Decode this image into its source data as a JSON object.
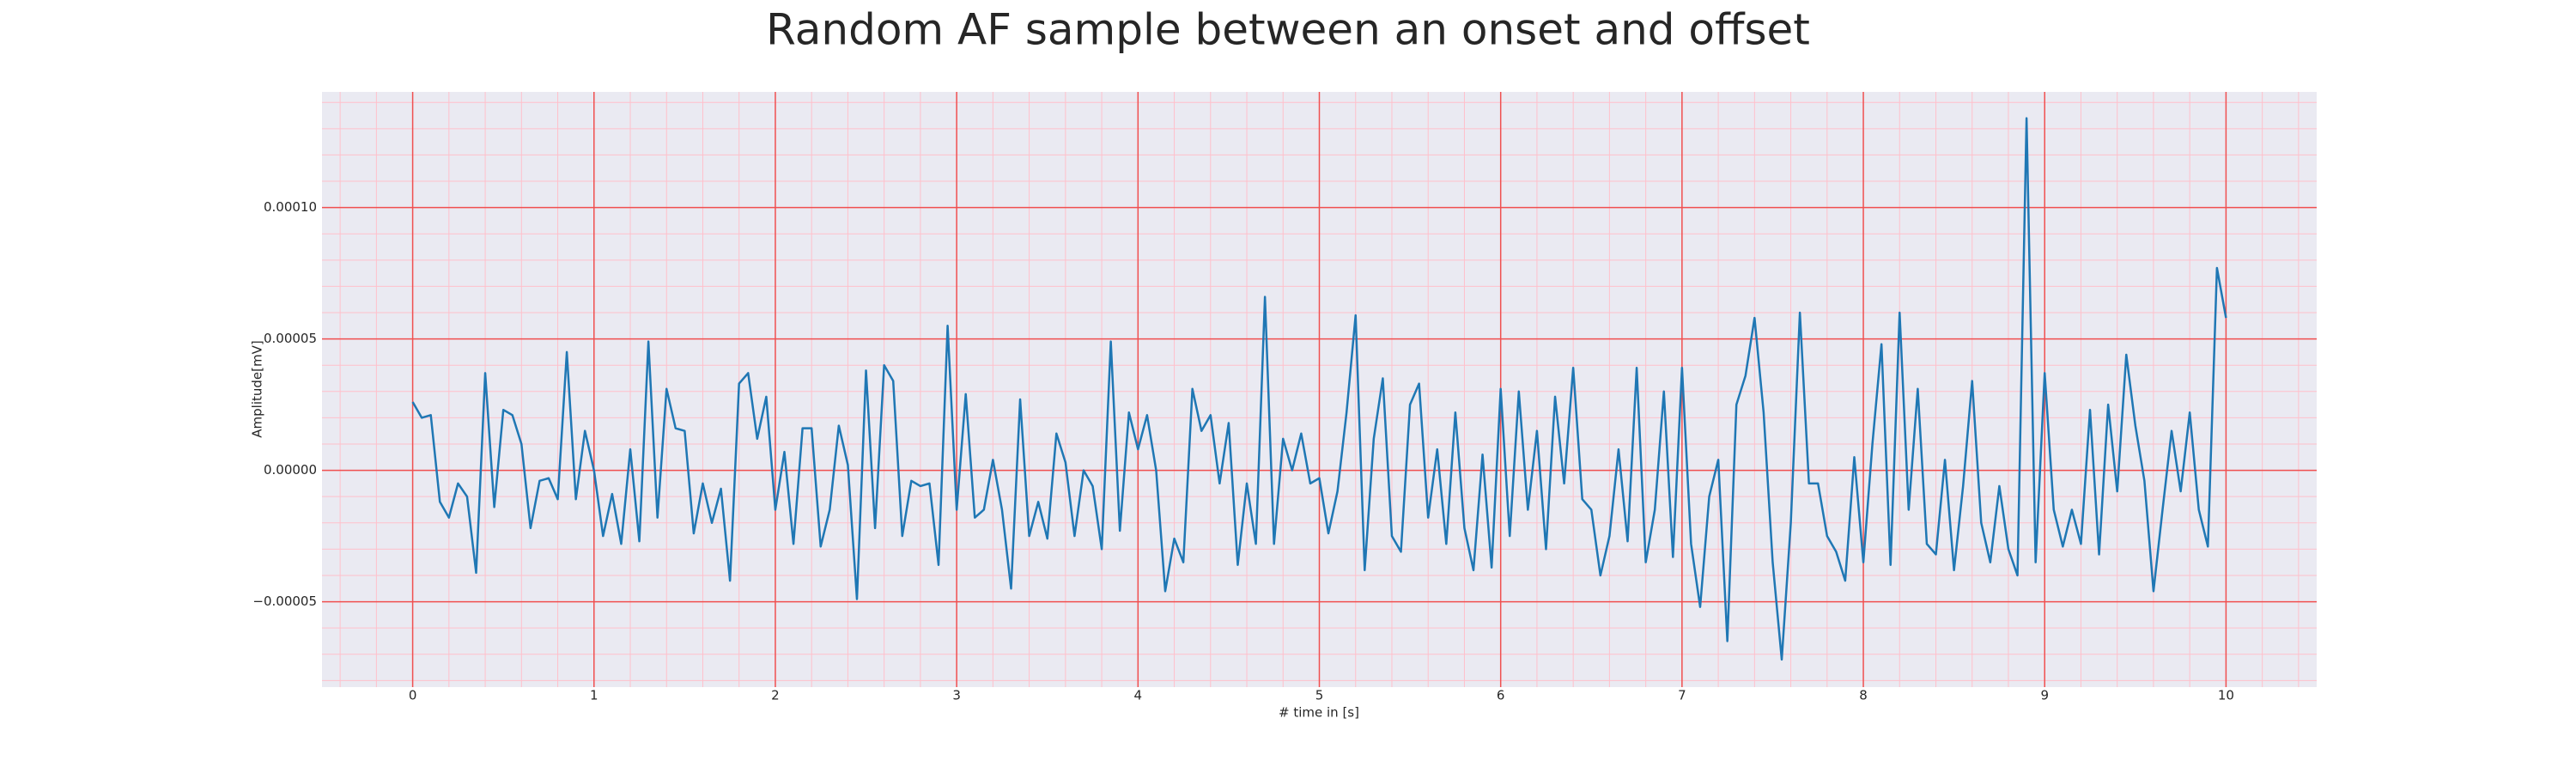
{
  "chart_data": {
    "type": "line",
    "title": "Random AF sample between an onset and offset",
    "xlabel": "# time in [s]",
    "ylabel": "Amplitude[mV]",
    "color": "#1f77b4",
    "grid": true,
    "xlim": [
      -0.5,
      10.5
    ],
    "ylim": [
      -8.25e-05,
      0.000144
    ],
    "xticks": [
      0,
      1,
      2,
      3,
      4,
      5,
      6,
      7,
      8,
      9,
      10
    ],
    "yticks": [
      {
        "value": -5e-05,
        "label": "−0.00005"
      },
      {
        "value": 0,
        "label": "0.00000"
      },
      {
        "value": 5e-05,
        "label": "0.00005"
      },
      {
        "value": 0.0001,
        "label": "0.00010"
      }
    ],
    "x": [
      0,
      0.05,
      0.1,
      0.15,
      0.2,
      0.25,
      0.3,
      0.35,
      0.4,
      0.45,
      0.5,
      0.55,
      0.6,
      0.65,
      0.7,
      0.75,
      0.8,
      0.85,
      0.9,
      0.95,
      1,
      1.05,
      1.1,
      1.15,
      1.2,
      1.25,
      1.3,
      1.35,
      1.4,
      1.45,
      1.5,
      1.55,
      1.6,
      1.65,
      1.7,
      1.75,
      1.8,
      1.85,
      1.9,
      1.95,
      2,
      2.05,
      2.1,
      2.15,
      2.2,
      2.25,
      2.3,
      2.35,
      2.4,
      2.45,
      2.5,
      2.55,
      2.6,
      2.65,
      2.7,
      2.75,
      2.8,
      2.85,
      2.9,
      2.95,
      3,
      3.05,
      3.1,
      3.15,
      3.2,
      3.25,
      3.3,
      3.35,
      3.4,
      3.45,
      3.5,
      3.55,
      3.6,
      3.65,
      3.7,
      3.75,
      3.8,
      3.85,
      3.9,
      3.95,
      4,
      4.05,
      4.1,
      4.15,
      4.2,
      4.25,
      4.3,
      4.35,
      4.4,
      4.45,
      4.5,
      4.55,
      4.6,
      4.65,
      4.7,
      4.75,
      4.8,
      4.85,
      4.9,
      4.95,
      5,
      5.05,
      5.1,
      5.15,
      5.2,
      5.25,
      5.3,
      5.35,
      5.4,
      5.45,
      5.5,
      5.55,
      5.6,
      5.65,
      5.7,
      5.75,
      5.8,
      5.85,
      5.9,
      5.95,
      6,
      6.05,
      6.1,
      6.15,
      6.2,
      6.25,
      6.3,
      6.35,
      6.4,
      6.45,
      6.5,
      6.55,
      6.6,
      6.65,
      6.7,
      6.75,
      6.8,
      6.85,
      6.9,
      6.95,
      7,
      7.05,
      7.1,
      7.15,
      7.2,
      7.25,
      7.3,
      7.35,
      7.4,
      7.45,
      7.5,
      7.55,
      7.6,
      7.65,
      7.7,
      7.75,
      7.8,
      7.85,
      7.9,
      7.95,
      8,
      8.05,
      8.1,
      8.15,
      8.2,
      8.25,
      8.3,
      8.35,
      8.4,
      8.45,
      8.5,
      8.55,
      8.6,
      8.65,
      8.7,
      8.75,
      8.8,
      8.85,
      8.9,
      8.95,
      9,
      9.05,
      9.1,
      9.15,
      9.2,
      9.25,
      9.3,
      9.35,
      9.4,
      9.45,
      9.5,
      9.55,
      9.6,
      9.65,
      9.7,
      9.75,
      9.8,
      9.85,
      9.9,
      9.95,
      10
    ],
    "values": [
      2.6e-05,
      2e-05,
      2.1e-05,
      -1.2e-05,
      -1.8e-05,
      -5e-06,
      -1e-05,
      -3.9e-05,
      3.7e-05,
      -1.4e-05,
      2.3e-05,
      2.1e-05,
      1e-05,
      -2.2e-05,
      -4e-06,
      -3e-06,
      -1.1e-05,
      4.5e-05,
      -1.1e-05,
      1.5e-05,
      0,
      -2.5e-05,
      -9e-06,
      -2.8e-05,
      8e-06,
      -2.7e-05,
      4.9e-05,
      -1.8e-05,
      3.1e-05,
      1.6e-05,
      1.5e-05,
      -2.4e-05,
      -5e-06,
      -2e-05,
      -7e-06,
      -4.2e-05,
      3.3e-05,
      3.7e-05,
      1.2e-05,
      2.8e-05,
      -1.5e-05,
      7e-06,
      -2.8e-05,
      1.6e-05,
      1.6e-05,
      -2.9e-05,
      -1.5e-05,
      1.7e-05,
      2e-06,
      -4.9e-05,
      3.8e-05,
      -2.2e-05,
      4e-05,
      3.4e-05,
      -2.5e-05,
      -4e-06,
      -6e-06,
      -5e-06,
      -3.6e-05,
      5.5e-05,
      -1.5e-05,
      2.9e-05,
      -1.8e-05,
      -1.5e-05,
      4e-06,
      -1.5e-05,
      -4.5e-05,
      2.7e-05,
      -2.5e-05,
      -1.2e-05,
      -2.6e-05,
      1.4e-05,
      3e-06,
      -2.5e-05,
      0,
      -6e-06,
      -3e-05,
      4.9e-05,
      -2.3e-05,
      2.2e-05,
      8e-06,
      2.1e-05,
      0,
      -4.6e-05,
      -2.6e-05,
      -3.5e-05,
      3.1e-05,
      1.5e-05,
      2.1e-05,
      -5e-06,
      1.8e-05,
      -3.6e-05,
      -5e-06,
      -2.8e-05,
      6.6e-05,
      -2.8e-05,
      1.2e-05,
      0,
      1.4e-05,
      -5e-06,
      -3e-06,
      -2.4e-05,
      -8e-06,
      2.2e-05,
      5.9e-05,
      -3.8e-05,
      1.2e-05,
      3.5e-05,
      -2.5e-05,
      -3.1e-05,
      2.5e-05,
      3.3e-05,
      -1.8e-05,
      8e-06,
      -2.8e-05,
      2.2e-05,
      -2.2e-05,
      -3.8e-05,
      6e-06,
      -3.7e-05,
      3.1e-05,
      -2.5e-05,
      3e-05,
      -1.5e-05,
      1.5e-05,
      -3e-05,
      2.8e-05,
      -5e-06,
      3.9e-05,
      -1.1e-05,
      -1.5e-05,
      -4e-05,
      -2.5e-05,
      8e-06,
      -2.7e-05,
      3.9e-05,
      -3.5e-05,
      -1.5e-05,
      3e-05,
      -3.3e-05,
      3.9e-05,
      -2.8e-05,
      -5.2e-05,
      -1e-05,
      4e-06,
      -6.5e-05,
      2.5e-05,
      3.6e-05,
      5.8e-05,
      2.2e-05,
      -3.5e-05,
      -7.2e-05,
      -2e-05,
      6e-05,
      -5e-06,
      -5e-06,
      -2.5e-05,
      -3.1e-05,
      -4.2e-05,
      5e-06,
      -3.5e-05,
      1e-05,
      4.8e-05,
      -3.6e-05,
      6e-05,
      -1.5e-05,
      3.1e-05,
      -2.8e-05,
      -3.2e-05,
      4e-06,
      -3.8e-05,
      -6e-06,
      3.4e-05,
      -2e-05,
      -3.5e-05,
      -6e-06,
      -3e-05,
      -4e-05,
      0.000134,
      -3.5e-05,
      3.7e-05,
      -1.5e-05,
      -2.9e-05,
      -1.5e-05,
      -2.8e-05,
      2.3e-05,
      -3.2e-05,
      2.5e-05,
      -8e-06,
      4.4e-05,
      1.7e-05,
      -4e-06,
      -4.6e-05,
      -1.5e-05,
      1.5e-05,
      -8e-06,
      2.2e-05,
      -1.5e-05,
      -2.9e-05,
      7.7e-05,
      5.8e-05
    ]
  }
}
